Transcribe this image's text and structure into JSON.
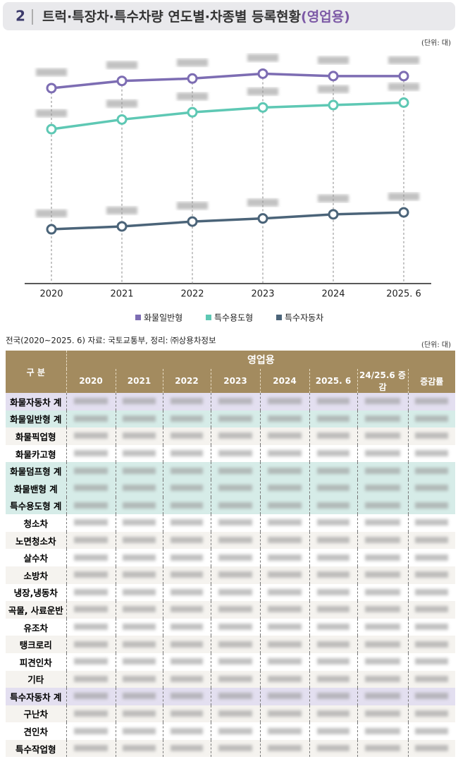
{
  "header": {
    "number": "2",
    "title": "트럭·특장차·특수차량 연도별·차종별 등록현황",
    "title_suffix": "(영업용)"
  },
  "chart_data": {
    "type": "line",
    "unit": "(단위: 대)",
    "categories": [
      "2020",
      "2021",
      "2022",
      "2023",
      "2024",
      "2025. 6"
    ],
    "series": [
      {
        "name": "화물일반형",
        "color": "#7d6db3",
        "values": [
          81,
          84,
          85,
          87,
          86,
          86
        ]
      },
      {
        "name": "특수용도형",
        "color": "#5ec8b4",
        "values": [
          64,
          68,
          71,
          73,
          74,
          75
        ]
      },
      {
        "name": "특수자동차",
        "color": "#4b6479",
        "values": [
          22.5,
          23.7,
          25.7,
          27,
          28.7,
          29.5
        ]
      }
    ],
    "ylim": [
      0,
      100
    ],
    "legend_position": "bottom"
  },
  "table": {
    "source": "전국(2020~2025. 6) 자료: 국토교통부, 정리: ㈜상용차정보",
    "unit": "(단위: 대)",
    "row_header": "구 분",
    "group_header": "영업용",
    "columns": [
      "2020",
      "2021",
      "2022",
      "2023",
      "2024",
      "2025. 6",
      "24/25.6 증감",
      "증감률"
    ],
    "rows": [
      {
        "label": "화물자동차 계",
        "highlight": "#e3dff0"
      },
      {
        "label": "화물일반형 계",
        "highlight": "#d6ece8"
      },
      {
        "label": "화물픽업형"
      },
      {
        "label": "화물카고형"
      },
      {
        "label": "화물덤프형 계",
        "highlight": "#d6ece8"
      },
      {
        "label": "화물밴형 계",
        "highlight": "#d6ece8"
      },
      {
        "label": "특수용도형 계",
        "highlight": "#d6ece8"
      },
      {
        "label": "청소차"
      },
      {
        "label": "노면청소차"
      },
      {
        "label": "살수차"
      },
      {
        "label": "소방차"
      },
      {
        "label": "냉장,냉동차"
      },
      {
        "label": "곡물, 사료운반"
      },
      {
        "label": "유조차"
      },
      {
        "label": "탱크로리"
      },
      {
        "label": "피견인차"
      },
      {
        "label": "기타"
      },
      {
        "label": "특수자동차 계",
        "highlight": "#e3dff0"
      },
      {
        "label": "구난차"
      },
      {
        "label": "견인차"
      },
      {
        "label": "특수작업형"
      }
    ]
  }
}
